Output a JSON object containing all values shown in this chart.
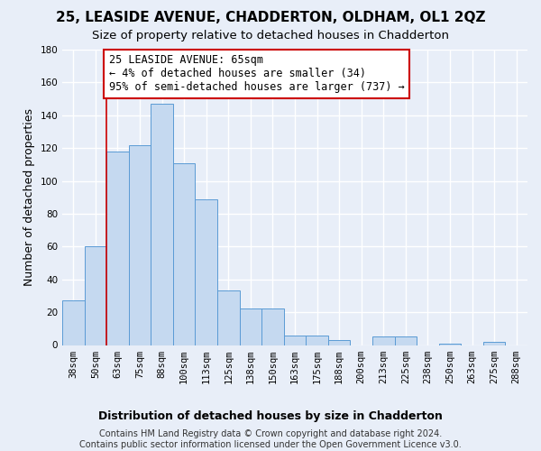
{
  "title": "25, LEASIDE AVENUE, CHADDERTON, OLDHAM, OL1 2QZ",
  "subtitle": "Size of property relative to detached houses in Chadderton",
  "xlabel": "Distribution of detached houses by size in Chadderton",
  "ylabel": "Number of detached properties",
  "footer_line1": "Contains HM Land Registry data © Crown copyright and database right 2024.",
  "footer_line2": "Contains public sector information licensed under the Open Government Licence v3.0.",
  "categories": [
    "38sqm",
    "50sqm",
    "63sqm",
    "75sqm",
    "88sqm",
    "100sqm",
    "113sqm",
    "125sqm",
    "138sqm",
    "150sqm",
    "163sqm",
    "175sqm",
    "188sqm",
    "200sqm",
    "213sqm",
    "225sqm",
    "238sqm",
    "250sqm",
    "263sqm",
    "275sqm",
    "288sqm"
  ],
  "values": [
    27,
    60,
    118,
    122,
    147,
    111,
    89,
    33,
    22,
    22,
    6,
    6,
    3,
    0,
    5,
    5,
    0,
    1,
    0,
    2,
    0
  ],
  "bar_color": "#c5d9f0",
  "bar_edge_color": "#5b9bd5",
  "ylim": [
    0,
    180
  ],
  "yticks": [
    0,
    20,
    40,
    60,
    80,
    100,
    120,
    140,
    160,
    180
  ],
  "vline_x": 1.5,
  "annotation_title": "25 LEASIDE AVENUE: 65sqm",
  "annotation_line2": "← 4% of detached houses are smaller (34)",
  "annotation_line3": "95% of semi-detached houses are larger (737) →",
  "annotation_box_color": "#ffffff",
  "annotation_box_edge": "#cc0000",
  "vline_color": "#cc0000",
  "background_color": "#e8eef8",
  "grid_color": "#ffffff",
  "title_fontsize": 11,
  "subtitle_fontsize": 9.5,
  "axis_label_fontsize": 9,
  "tick_fontsize": 7.5,
  "annotation_fontsize": 8.5,
  "footer_fontsize": 7
}
